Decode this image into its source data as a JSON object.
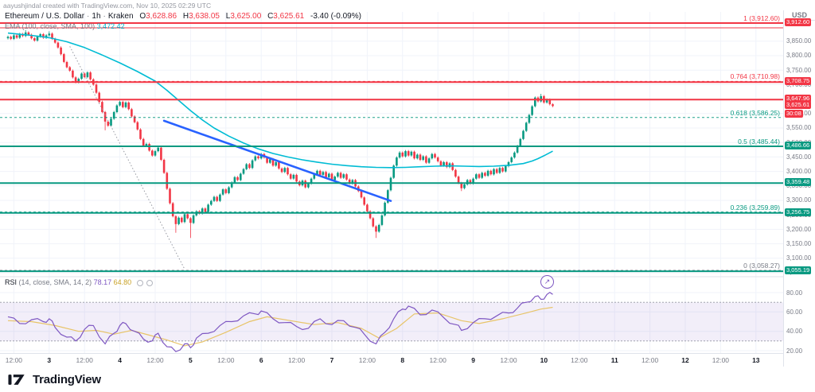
{
  "attribution": "aayushjindal created with TradingView.com, Nov 10, 2025 02:29 UTC",
  "legend": {
    "symbol": "Ethereum / U.S. Dollar",
    "separator": "·",
    "interval": "1h",
    "exchange": "Kraken",
    "o_label": "O",
    "h_label": "H",
    "l_label": "L",
    "c_label": "C",
    "open": "3,628.86",
    "high": "3,638.05",
    "low": "3,625.00",
    "close": "3,625.61",
    "change": "-3.40 (-0.09%)"
  },
  "ema_legend": {
    "label": "EMA",
    "params": "(100, close, SMA, 100)",
    "value": "3,472.42"
  },
  "rsi_legend": {
    "label": "RSI",
    "params": "(14, close, SMA, 14, 2)",
    "value": "78.17",
    "ma_value": "64.80"
  },
  "price_axis": {
    "currency": "USD",
    "ticks": [
      3850,
      3800,
      3750,
      3700,
      3650,
      3600,
      3550,
      3500,
      3450,
      3400,
      3350,
      3300,
      3250,
      3200,
      3150,
      3100,
      3050
    ]
  },
  "marker": {
    "glyph": "↗"
  },
  "footer": {
    "brand": "TradingView"
  },
  "chart_data": {
    "type": "candlestick",
    "title": "Ethereum / U.S. Dollar · 1h · Kraken",
    "ylabel": "USD",
    "y_axis": {
      "visible_min": 3020,
      "visible_max": 3950,
      "grid": true
    },
    "colors": {
      "up": "#089981",
      "down": "#F23645",
      "ema": "#00BCD4",
      "trendline": "#2962FF",
      "rsi": "#7E57C2",
      "rsi_ma": "#E8C468",
      "grid": "#F0F3FA",
      "guide": "#9598A1",
      "band_fill": "rgba(126,87,194,0.10)"
    },
    "candles": {
      "interval": "1h",
      "open_first": 3860,
      "wick": 4,
      "closes": [
        3865,
        3858,
        3870,
        3862,
        3875,
        3868,
        3880,
        3872,
        3860,
        3852,
        3866,
        3874,
        3862,
        3870,
        3876,
        3858,
        3845,
        3828,
        3805,
        3778,
        3760,
        3748,
        3725,
        3708,
        3720,
        3738,
        3726,
        3742,
        3718,
        3700,
        3672,
        3640,
        3605,
        3572,
        3558,
        3582,
        3605,
        3628,
        3640,
        3622,
        3638,
        3615,
        3590,
        3570,
        3545,
        3512,
        3488,
        3495,
        3472,
        3455,
        3470,
        3482,
        3440,
        3395,
        3340,
        3290,
        3245,
        3218,
        3240,
        3225,
        3252,
        3238,
        3222,
        3248,
        3262,
        3255,
        3272,
        3260,
        3285,
        3298,
        3312,
        3298,
        3320,
        3338,
        3325,
        3345,
        3362,
        3380,
        3370,
        3392,
        3408,
        3425,
        3412,
        3438,
        3452,
        3445,
        3460,
        3448,
        3430,
        3442,
        3420,
        3432,
        3410,
        3398,
        3412,
        3390,
        3375,
        3388,
        3365,
        3352,
        3368,
        3345,
        3358,
        3375,
        3390,
        3402,
        3388,
        3398,
        3380,
        3392,
        3370,
        3382,
        3395,
        3378,
        3390,
        3372,
        3358,
        3370,
        3348,
        3332,
        3310,
        3285,
        3262,
        3238,
        3210,
        3192,
        3215,
        3248,
        3292,
        3335,
        3378,
        3420,
        3448,
        3465,
        3452,
        3470,
        3455,
        3468,
        3445,
        3458,
        3440,
        3452,
        3430,
        3445,
        3460,
        3448,
        3435,
        3420,
        3432,
        3415,
        3428,
        3405,
        3382,
        3360,
        3342,
        3355,
        3370,
        3358,
        3375,
        3390,
        3378,
        3395,
        3385,
        3402,
        3390,
        3408,
        3395,
        3412,
        3400,
        3418,
        3432,
        3448,
        3465,
        3488,
        3512,
        3540,
        3568,
        3595,
        3625,
        3655,
        3642,
        3660,
        3638,
        3648,
        3632,
        3625.61
      ],
      "special_lows": {
        "33": 3542,
        "57": 3188,
        "62": 3170,
        "125": 3170,
        "154": 3332
      },
      "special_highs": {
        "6": 3888,
        "14": 3884,
        "133": 3470,
        "181": 3668
      },
      "last_ohlc": {
        "o": 3628.86,
        "h": 3638.05,
        "l": 3625.0,
        "c": 3625.61
      }
    },
    "ema": {
      "name": "EMA (100, close, SMA, 100)",
      "last_value": 3472.42,
      "points": [
        [
          0,
          3878
        ],
        [
          8,
          3870
        ],
        [
          14,
          3862
        ],
        [
          20,
          3848
        ],
        [
          26,
          3828
        ],
        [
          32,
          3802
        ],
        [
          38,
          3775
        ],
        [
          44,
          3745
        ],
        [
          50,
          3712
        ],
        [
          54,
          3680
        ],
        [
          58,
          3645
        ],
        [
          62,
          3610
        ],
        [
          66,
          3578
        ],
        [
          70,
          3550
        ],
        [
          75,
          3522
        ],
        [
          80,
          3498
        ],
        [
          85,
          3478
        ],
        [
          90,
          3462
        ],
        [
          95,
          3450
        ],
        [
          100,
          3440
        ],
        [
          105,
          3432
        ],
        [
          110,
          3425
        ],
        [
          115,
          3420
        ],
        [
          120,
          3416
        ],
        [
          125,
          3414
        ],
        [
          130,
          3413
        ],
        [
          135,
          3414
        ],
        [
          140,
          3416
        ],
        [
          145,
          3418
        ],
        [
          150,
          3419
        ],
        [
          155,
          3418
        ],
        [
          160,
          3417
        ],
        [
          165,
          3418
        ],
        [
          170,
          3421
        ],
        [
          175,
          3427
        ],
        [
          178,
          3436
        ],
        [
          180,
          3444
        ],
        [
          182,
          3454
        ],
        [
          185,
          3470
        ]
      ]
    },
    "trendline": {
      "i1": 53,
      "p1": 3575,
      "i2": 130,
      "p2": 3298
    },
    "guide_line": {
      "i1": 21,
      "p1": 3832,
      "i2": 60,
      "p2": 3062
    },
    "levels": {
      "fib_levels": [
        {
          "text": "1 (3,912.60)",
          "price": 3912.6,
          "color": "#F23645"
        },
        {
          "text": "0.764 (3,710.98)",
          "price": 3710.98,
          "color": "#F23645"
        },
        {
          "text": "0.618 (3,586.25)",
          "price": 3586.25,
          "color": "#089981"
        },
        {
          "text": "0.5 (3,485.44)",
          "price": 3485.44,
          "color": "#089981"
        },
        {
          "text": "0.236 (3,259.89)",
          "price": 3259.89,
          "color": "#089981"
        },
        {
          "text": "0 (3,058.27)",
          "price": 3058.27,
          "color": "#787B86"
        }
      ],
      "lines": [
        {
          "price": 3912.6,
          "color": "#F23645",
          "width": 2
        },
        {
          "price": 3896.0,
          "color": "#F23645",
          "width": 1
        },
        {
          "price": 3708.75,
          "color": "#F23645",
          "width": 2
        },
        {
          "price": 3647.96,
          "color": "#F23645",
          "width": 2
        },
        {
          "price": 3486.66,
          "color": "#089981",
          "width": 2
        },
        {
          "price": 3359.48,
          "color": "#089981",
          "width": 2
        },
        {
          "price": 3256.75,
          "color": "#089981",
          "width": 2
        },
        {
          "price": 3055.19,
          "color": "#089981",
          "width": 2
        }
      ],
      "badges": [
        {
          "text": "3,912.60",
          "price": 3912.6,
          "color": "#F23645"
        },
        {
          "text": "3,708.75",
          "price": 3708.75,
          "color": "#F23645"
        },
        {
          "text": "3,647.96",
          "price": 3647.96,
          "color": "#F23645"
        },
        {
          "text": "3,625.61",
          "price": 3625.61,
          "color": "#F23645",
          "countdown": "30:08"
        },
        {
          "text": "3,486.66",
          "price": 3486.66,
          "color": "#089981"
        },
        {
          "text": "3,359.48",
          "price": 3359.48,
          "color": "#089981"
        },
        {
          "text": "3,256.75",
          "price": 3256.75,
          "color": "#089981"
        },
        {
          "text": "3,055.19",
          "price": 3055.19,
          "color": "#089981"
        }
      ]
    },
    "rsi": {
      "upper": 70,
      "lower": 30,
      "ticks": [
        80,
        60,
        40,
        20
      ],
      "last": 78.17,
      "ma_last": 64.8,
      "points": [
        [
          0,
          55
        ],
        [
          4,
          48
        ],
        [
          8,
          52
        ],
        [
          12,
          50
        ],
        [
          14,
          53
        ],
        [
          16,
          44
        ],
        [
          20,
          34
        ],
        [
          23,
          30
        ],
        [
          26,
          42
        ],
        [
          29,
          46
        ],
        [
          33,
          27
        ],
        [
          36,
          38
        ],
        [
          38,
          46
        ],
        [
          40,
          48
        ],
        [
          43,
          40
        ],
        [
          46,
          32
        ],
        [
          49,
          30
        ],
        [
          51,
          38
        ],
        [
          54,
          24
        ],
        [
          57,
          19
        ],
        [
          60,
          27
        ],
        [
          62,
          23
        ],
        [
          64,
          33
        ],
        [
          68,
          38
        ],
        [
          72,
          46
        ],
        [
          76,
          50
        ],
        [
          80,
          56
        ],
        [
          84,
          58
        ],
        [
          86,
          61
        ],
        [
          90,
          53
        ],
        [
          94,
          49
        ],
        [
          98,
          45
        ],
        [
          102,
          43
        ],
        [
          106,
          53
        ],
        [
          110,
          47
        ],
        [
          114,
          51
        ],
        [
          118,
          44
        ],
        [
          121,
          37
        ],
        [
          125,
          27
        ],
        [
          128,
          39
        ],
        [
          131,
          53
        ],
        [
          134,
          63
        ],
        [
          136,
          66
        ],
        [
          140,
          57
        ],
        [
          144,
          62
        ],
        [
          148,
          54
        ],
        [
          152,
          47
        ],
        [
          154,
          41
        ],
        [
          158,
          49
        ],
        [
          162,
          53
        ],
        [
          166,
          56
        ],
        [
          170,
          59
        ],
        [
          173,
          64
        ],
        [
          176,
          70
        ],
        [
          179,
          76
        ],
        [
          181,
          73
        ],
        [
          183,
          78
        ],
        [
          185,
          78.17
        ]
      ],
      "ma_points": [
        [
          0,
          51
        ],
        [
          8,
          50
        ],
        [
          16,
          46
        ],
        [
          24,
          40
        ],
        [
          30,
          41
        ],
        [
          36,
          37
        ],
        [
          42,
          41
        ],
        [
          48,
          36
        ],
        [
          54,
          31
        ],
        [
          60,
          25
        ],
        [
          66,
          29
        ],
        [
          74,
          39
        ],
        [
          82,
          50
        ],
        [
          88,
          55
        ],
        [
          96,
          51
        ],
        [
          104,
          47
        ],
        [
          112,
          49
        ],
        [
          120,
          43
        ],
        [
          126,
          33
        ],
        [
          132,
          43
        ],
        [
          138,
          58
        ],
        [
          146,
          59
        ],
        [
          154,
          51
        ],
        [
          160,
          48
        ],
        [
          168,
          53
        ],
        [
          176,
          59
        ],
        [
          181,
          63
        ],
        [
          185,
          64.8
        ]
      ]
    },
    "time_axis": {
      "labels": [
        {
          "i": 2,
          "t": "12:00"
        },
        {
          "i": 14,
          "t": "3",
          "day": true
        },
        {
          "i": 26,
          "t": "12:00"
        },
        {
          "i": 38,
          "t": "4",
          "day": true
        },
        {
          "i": 50,
          "t": "12:00"
        },
        {
          "i": 62,
          "t": "5",
          "day": true
        },
        {
          "i": 74,
          "t": "12:00"
        },
        {
          "i": 86,
          "t": "6",
          "day": true
        },
        {
          "i": 98,
          "t": "12:00"
        },
        {
          "i": 110,
          "t": "7",
          "day": true
        },
        {
          "i": 122,
          "t": "12:00"
        },
        {
          "i": 134,
          "t": "8",
          "day": true
        },
        {
          "i": 146,
          "t": "12:00"
        },
        {
          "i": 158,
          "t": "9",
          "day": true
        },
        {
          "i": 170,
          "t": "12:00"
        },
        {
          "i": 182,
          "t": "10",
          "day": true
        },
        {
          "i": 194,
          "t": "12:00"
        },
        {
          "i": 206,
          "t": "11",
          "day": true
        },
        {
          "i": 218,
          "t": "12:00"
        },
        {
          "i": 230,
          "t": "12",
          "day": true
        },
        {
          "i": 242,
          "t": "12:00"
        },
        {
          "i": 254,
          "t": "13",
          "day": true
        }
      ]
    }
  }
}
